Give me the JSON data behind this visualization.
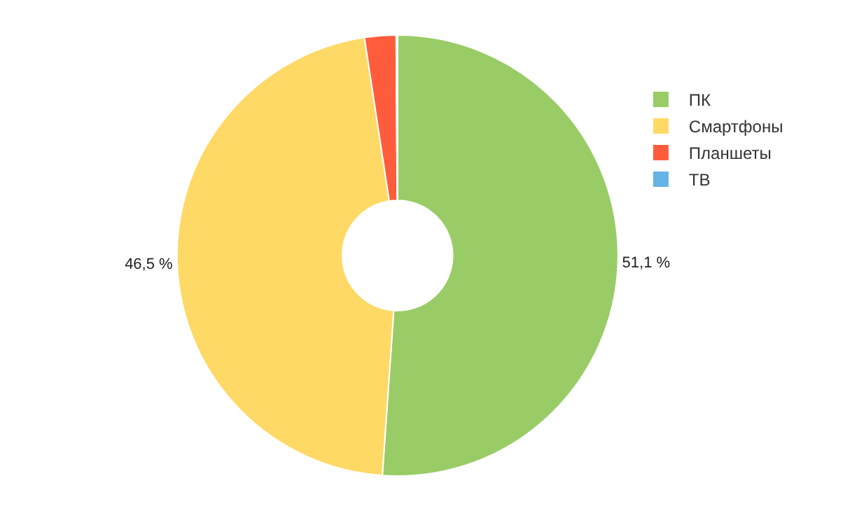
{
  "chart_data": {
    "type": "donut",
    "categories": [
      "ПК",
      "Смартфоны",
      "Планшеты",
      "ТВ"
    ],
    "values": [
      51.1,
      46.5,
      2.3,
      0.1
    ],
    "colors": [
      "#99cc66",
      "#ffd966",
      "#ff5c3d",
      "#66b3e6"
    ],
    "value_labels": [
      "51,1 %",
      "46,5 %",
      null,
      null
    ],
    "legend": "top right"
  }
}
